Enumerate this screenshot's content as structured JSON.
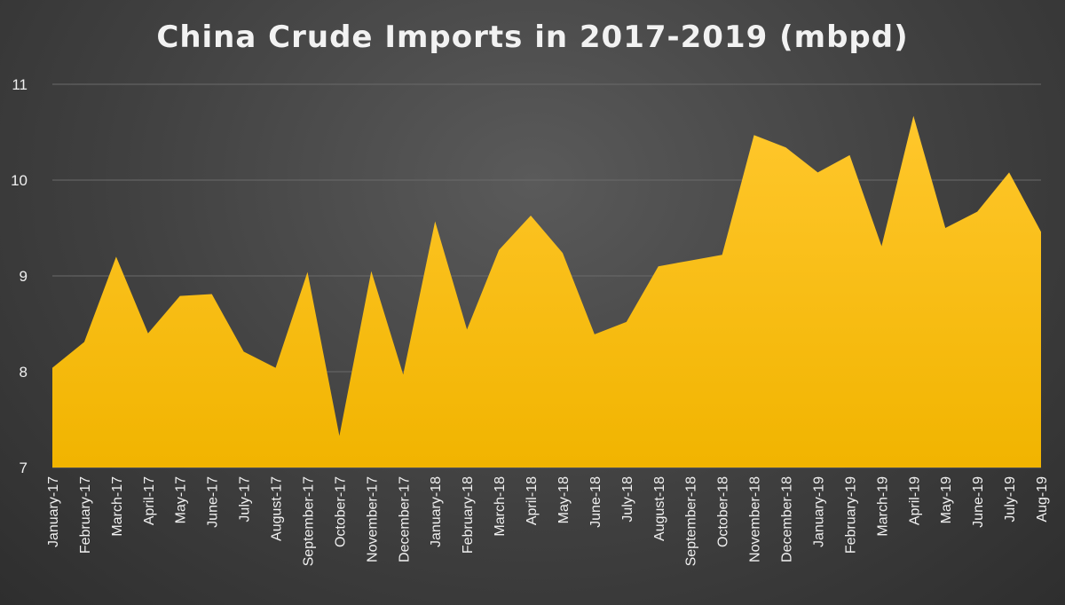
{
  "chart_data": {
    "type": "area",
    "title": "China Crude Imports in 2017-2019 (mbpd)",
    "xlabel": "",
    "ylabel": "",
    "ylim": [
      7,
      11
    ],
    "yticks": [
      7,
      8,
      9,
      10,
      11
    ],
    "grid": true,
    "legend": "none",
    "colors": {
      "area_top": "#ffc72c",
      "area_bottom": "#f1b400",
      "grid": "#6a6a6a",
      "axis_text": "#f0f0f0"
    },
    "categories": [
      "January-17",
      "February-17",
      "March-17",
      "April-17",
      "May-17",
      "June-17",
      "July-17",
      "August-17",
      "September-17",
      "October-17",
      "November-17",
      "December-17",
      "January-18",
      "February-18",
      "March-18",
      "April-18",
      "May-18",
      "June-18",
      "July-18",
      "August-18",
      "September-18",
      "October-18",
      "November-18",
      "December-18",
      "January-19",
      "February-19",
      "March-19",
      "April-19",
      "May-19",
      "June-19",
      "July-19",
      "Aug-19"
    ],
    "series": [
      {
        "values": [
          8.04,
          8.31,
          9.2,
          8.4,
          8.79,
          8.81,
          8.21,
          8.04,
          9.04,
          7.33,
          9.05,
          7.97,
          9.57,
          8.44,
          9.27,
          9.63,
          9.24,
          8.39,
          8.52,
          9.1,
          9.16,
          9.22,
          10.47,
          10.34,
          10.08,
          10.26,
          9.31,
          10.67,
          9.5,
          9.67,
          10.08,
          9.46
        ]
      }
    ]
  }
}
